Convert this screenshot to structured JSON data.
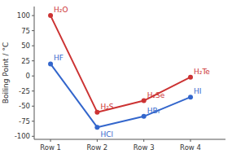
{
  "chart_data": {
    "type": "line",
    "categories": [
      "Row 1",
      "Row 2",
      "Row 3",
      "Row 4"
    ],
    "series": [
      {
        "color": "#cc3333",
        "marker": "circle",
        "values": [
          100,
          -60,
          -41,
          -2
        ],
        "labels": [
          "H₂O",
          "H₂S",
          "H₂Se",
          "H₂Te"
        ]
      },
      {
        "color": "#3366cc",
        "marker": "circle",
        "values": [
          20,
          -85,
          -67,
          -35
        ],
        "labels": [
          "HF",
          "HCl",
          "HBr",
          "HI"
        ]
      }
    ],
    "y_label": "Boiling Point / °C",
    "ylim": [
      -105,
      115
    ],
    "yticks": [
      -100,
      -75,
      -50,
      -25,
      0,
      25,
      50,
      75,
      100
    ],
    "grid": false
  }
}
